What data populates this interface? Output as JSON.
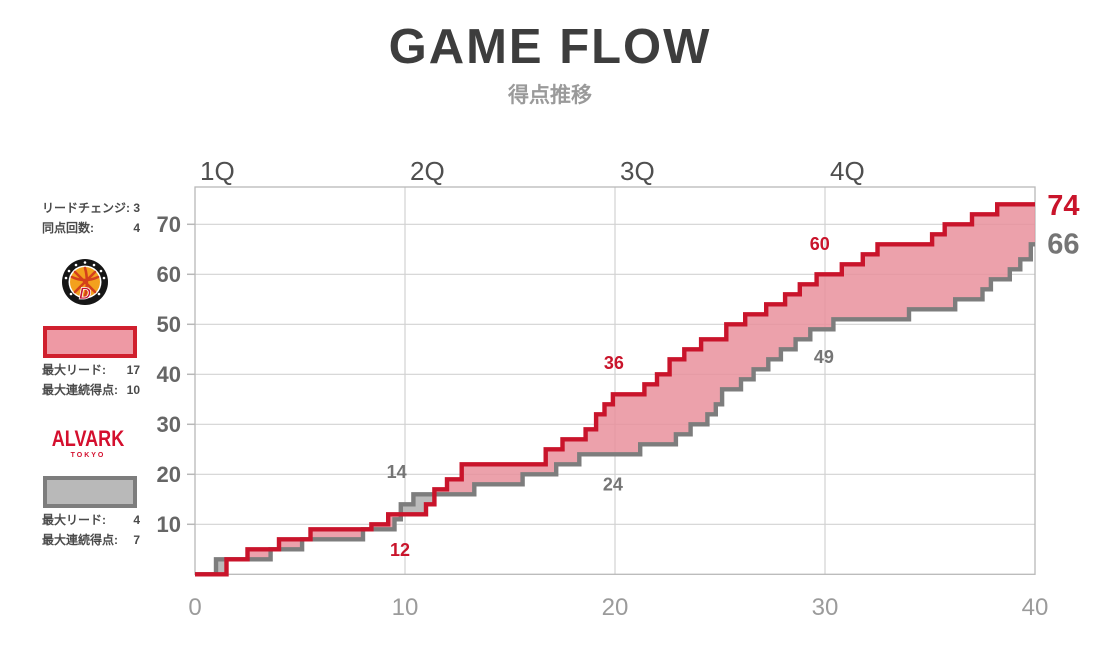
{
  "header": {
    "title": "GAME FLOW",
    "subtitle": "得点推移"
  },
  "stats_panel": {
    "lead_changes": {
      "label": "リードチェンジ:",
      "value": "3"
    },
    "ties": {
      "label": "同点回数:",
      "value": "4"
    },
    "red_team": {
      "logo": "nagoya-badge",
      "max_lead": {
        "label": "最大リード:",
        "value": "17"
      },
      "max_run": {
        "label": "最大連続得点:",
        "value": "10"
      }
    },
    "gray_team": {
      "logo_line1": "ALVARK",
      "logo_line2": "TOKYO",
      "max_lead": {
        "label": "最大リード:",
        "value": "4"
      },
      "max_run": {
        "label": "最大連続得点:",
        "value": "7"
      }
    }
  },
  "chart_data": {
    "type": "area",
    "description": "Step chart of cumulative points vs game minutes (0-40), two teams",
    "x_ticks": [
      0,
      10,
      20,
      30,
      40
    ],
    "y_ticks": [
      10,
      20,
      30,
      40,
      50,
      60,
      70
    ],
    "xlim": [
      0,
      40
    ],
    "ylim": [
      0,
      77
    ],
    "quarter_labels": [
      "1Q",
      "2Q",
      "3Q",
      "4Q"
    ],
    "grid": true,
    "series": [
      {
        "name": "red-team",
        "final_score": 74,
        "quarter_scores": [
          12,
          36,
          60,
          74
        ],
        "steps": [
          [
            0,
            0
          ],
          [
            1.5,
            3
          ],
          [
            2.5,
            5
          ],
          [
            4,
            7
          ],
          [
            5.5,
            9
          ],
          [
            8.4,
            10
          ],
          [
            9.2,
            12
          ],
          [
            11,
            14
          ],
          [
            11.4,
            17
          ],
          [
            12,
            19
          ],
          [
            12.7,
            22
          ],
          [
            16.7,
            25
          ],
          [
            17.5,
            27
          ],
          [
            18.6,
            29
          ],
          [
            19.1,
            32
          ],
          [
            19.5,
            34
          ],
          [
            19.9,
            36
          ],
          [
            21.4,
            38
          ],
          [
            22,
            40
          ],
          [
            22.6,
            43
          ],
          [
            23.3,
            45
          ],
          [
            24.1,
            47
          ],
          [
            25.3,
            50
          ],
          [
            26.2,
            52
          ],
          [
            27.2,
            54
          ],
          [
            28.1,
            56
          ],
          [
            28.8,
            58
          ],
          [
            29.6,
            60
          ],
          [
            30.8,
            62
          ],
          [
            31.8,
            64
          ],
          [
            32.5,
            66
          ],
          [
            35.1,
            68
          ],
          [
            35.7,
            70
          ],
          [
            37,
            72
          ],
          [
            38.2,
            74
          ]
        ]
      },
      {
        "name": "gray-team",
        "final_score": 66,
        "quarter_scores": [
          14,
          24,
          49,
          66
        ],
        "steps": [
          [
            0,
            0
          ],
          [
            1,
            3
          ],
          [
            3.6,
            5
          ],
          [
            5.1,
            7
          ],
          [
            8,
            9
          ],
          [
            9.5,
            11
          ],
          [
            9.8,
            14
          ],
          [
            10.4,
            16
          ],
          [
            13.3,
            18
          ],
          [
            15.6,
            20
          ],
          [
            17.2,
            22
          ],
          [
            18.3,
            24
          ],
          [
            21.2,
            26
          ],
          [
            22.9,
            28
          ],
          [
            23.6,
            30
          ],
          [
            24.4,
            32
          ],
          [
            24.8,
            34
          ],
          [
            25.1,
            37
          ],
          [
            26,
            39
          ],
          [
            26.6,
            41
          ],
          [
            27.3,
            43
          ],
          [
            27.9,
            45
          ],
          [
            28.6,
            47
          ],
          [
            29.3,
            49
          ],
          [
            30.4,
            51
          ],
          [
            34,
            53
          ],
          [
            36.2,
            55
          ],
          [
            37.5,
            57
          ],
          [
            37.9,
            59
          ],
          [
            38.8,
            61
          ],
          [
            39.3,
            63
          ],
          [
            39.8,
            66
          ]
        ]
      }
    ],
    "annotations": [
      {
        "text": "12",
        "team": "red",
        "t": 9.76,
        "score": 5.1,
        "size": "small"
      },
      {
        "text": "14",
        "team": "gray",
        "t": 9.6,
        "score": 20.7,
        "size": "small"
      },
      {
        "text": "36",
        "team": "red",
        "t": 19.95,
        "score": 42.5,
        "size": "small"
      },
      {
        "text": "24",
        "team": "gray",
        "t": 19.9,
        "score": 18.2,
        "size": "small"
      },
      {
        "text": "60",
        "team": "red",
        "t": 29.75,
        "score": 66.3,
        "size": "small"
      },
      {
        "text": "49",
        "team": "gray",
        "t": 29.95,
        "score": 43.7,
        "size": "small"
      },
      {
        "text": "74",
        "team": "red",
        "t": 41.35,
        "score": 73.9,
        "size": "large"
      },
      {
        "text": "66",
        "team": "gray",
        "t": 41.35,
        "score": 66.2,
        "size": "large"
      }
    ],
    "colors": {
      "red_line": "#c9142b",
      "red_fill": "#e9909c",
      "gray_line": "#7d7d7d",
      "gray_fill": "#b5b5b5",
      "gray_label": "#757575",
      "grid": "#d2d2d2",
      "spine": "#b8b8b8",
      "x_axis_text": "#9b9b9b",
      "y_axis_text": "#666666",
      "quarter_text": "#4f4f4f"
    }
  }
}
